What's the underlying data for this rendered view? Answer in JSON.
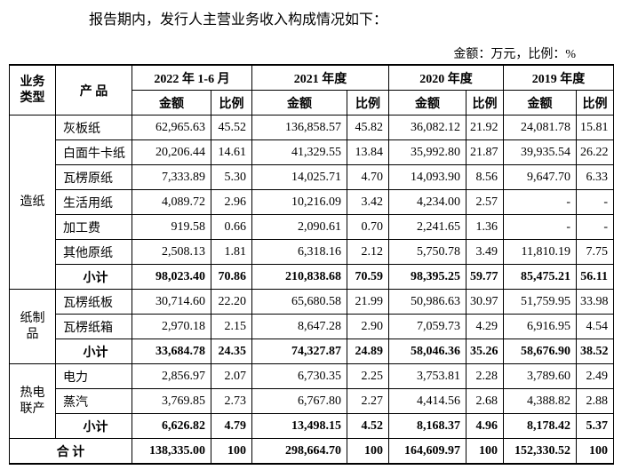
{
  "intro": "报告期内，发行人主营业务收入构成情况如下：",
  "unit": "金额：万元，比例：%",
  "table": {
    "header": {
      "type": "业务类型",
      "product": "产 品",
      "periods": [
        "2022 年 1-6 月",
        "2021 年度",
        "2020 年度",
        "2019 年度"
      ],
      "subheaders": [
        "金额",
        "比例",
        "金额",
        "比例",
        "金额",
        "比例",
        "金额",
        "比例"
      ]
    },
    "groups": [
      {
        "name": "造纸",
        "rows": [
          [
            "灰板纸",
            "62,965.63",
            "45.52",
            "136,858.57",
            "45.82",
            "36,082.12",
            "21.92",
            "24,081.78",
            "15.81"
          ],
          [
            "白面牛卡纸",
            "20,206.44",
            "14.61",
            "41,329.55",
            "13.84",
            "35,992.80",
            "21.87",
            "39,935.54",
            "26.22"
          ],
          [
            "瓦楞原纸",
            "7,333.89",
            "5.30",
            "14,025.71",
            "4.70",
            "14,093.90",
            "8.56",
            "9,647.70",
            "6.33"
          ],
          [
            "生活用纸",
            "4,089.72",
            "2.96",
            "10,216.09",
            "3.42",
            "4,234.00",
            "2.57",
            "-",
            "-"
          ],
          [
            "加工费",
            "919.58",
            "0.66",
            "2,090.61",
            "0.70",
            "2,241.65",
            "1.36",
            "-",
            "-"
          ],
          [
            "其他原纸",
            "2,508.13",
            "1.81",
            "6,318.16",
            "2.12",
            "5,750.78",
            "3.49",
            "11,810.19",
            "7.75"
          ]
        ],
        "subtotal": [
          "小计",
          "98,023.40",
          "70.86",
          "210,838.68",
          "70.59",
          "98,395.25",
          "59.77",
          "85,475.21",
          "56.11"
        ]
      },
      {
        "name": "纸制品",
        "rows": [
          [
            "瓦楞纸板",
            "30,714.60",
            "22.20",
            "65,680.58",
            "21.99",
            "50,986.63",
            "30.97",
            "51,759.95",
            "33.98"
          ],
          [
            "瓦楞纸箱",
            "2,970.18",
            "2.15",
            "8,647.28",
            "2.90",
            "7,059.73",
            "4.29",
            "6,916.95",
            "4.54"
          ]
        ],
        "subtotal": [
          "小计",
          "33,684.78",
          "24.35",
          "74,327.87",
          "24.89",
          "58,046.36",
          "35.26",
          "58,676.90",
          "38.52"
        ]
      },
      {
        "name": "热电联产",
        "rows": [
          [
            "电力",
            "2,856.97",
            "2.07",
            "6,730.35",
            "2.25",
            "3,753.81",
            "2.28",
            "3,789.60",
            "2.49"
          ],
          [
            "蒸汽",
            "3,769.85",
            "2.73",
            "6,767.80",
            "2.27",
            "4,414.56",
            "2.68",
            "4,388.82",
            "2.88"
          ]
        ],
        "subtotal": [
          "小计",
          "6,626.82",
          "4.79",
          "13,498.15",
          "4.52",
          "8,168.37",
          "4.96",
          "8,178.42",
          "5.37"
        ]
      }
    ],
    "total": [
      "合 计",
      "138,335.00",
      "100",
      "298,664.70",
      "100",
      "164,609.97",
      "100",
      "152,330.52",
      "100"
    ]
  }
}
